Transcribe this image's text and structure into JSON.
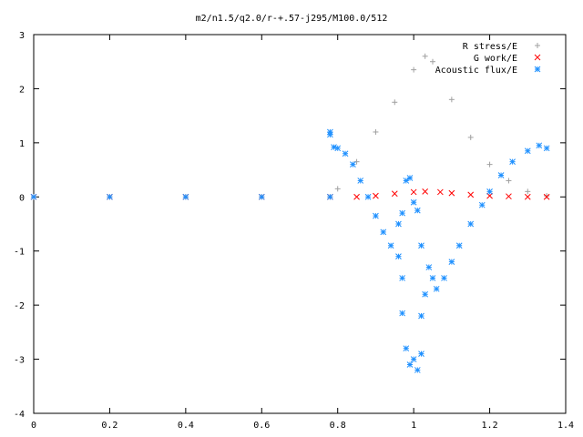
{
  "chart_data": {
    "type": "scatter",
    "title": "m2/n1.5/q2.0/r-+.57-j295/M100.0/512",
    "xlabel": "",
    "ylabel": "",
    "xlim": [
      0,
      1.4
    ],
    "ylim": [
      -4,
      3
    ],
    "x_ticks": [
      "0",
      "0.2",
      "0.4",
      "0.6",
      "0.8",
      "1",
      "1.2",
      "1.4"
    ],
    "y_ticks": [
      "3",
      "2",
      "1",
      "0",
      "-1",
      "-2",
      "-3",
      "-4"
    ],
    "grid": false,
    "legend_position": "top-right",
    "series": [
      {
        "name": "R stress/E",
        "marker": "plus",
        "color": "#a0a0a0",
        "points": [
          [
            0.0,
            0.0
          ],
          [
            0.2,
            0.0
          ],
          [
            0.4,
            0.0
          ],
          [
            0.6,
            0.0
          ],
          [
            0.78,
            0.0
          ],
          [
            0.8,
            0.15
          ],
          [
            0.85,
            0.65
          ],
          [
            0.9,
            1.2
          ],
          [
            0.95,
            1.75
          ],
          [
            1.0,
            2.35
          ],
          [
            1.03,
            2.6
          ],
          [
            1.05,
            2.5
          ],
          [
            1.1,
            1.8
          ],
          [
            1.15,
            1.1
          ],
          [
            1.2,
            0.6
          ],
          [
            1.25,
            0.3
          ],
          [
            1.3,
            0.1
          ],
          [
            1.35,
            0.02
          ]
        ]
      },
      {
        "name": "G work/E",
        "marker": "cross",
        "color": "#ff0000",
        "points": [
          [
            0.0,
            0.0
          ],
          [
            0.2,
            0.0
          ],
          [
            0.4,
            0.0
          ],
          [
            0.6,
            0.0
          ],
          [
            0.78,
            0.0
          ],
          [
            0.85,
            0.0
          ],
          [
            0.9,
            0.02
          ],
          [
            0.95,
            0.06
          ],
          [
            1.0,
            0.09
          ],
          [
            1.03,
            0.1
          ],
          [
            1.07,
            0.09
          ],
          [
            1.1,
            0.07
          ],
          [
            1.15,
            0.04
          ],
          [
            1.2,
            0.02
          ],
          [
            1.25,
            0.01
          ],
          [
            1.3,
            0.0
          ],
          [
            1.35,
            0.0
          ]
        ]
      },
      {
        "name": "Acoustic flux/E",
        "marker": "star",
        "color": "#1e90ff",
        "points": [
          [
            0.0,
            0.0
          ],
          [
            0.2,
            0.0
          ],
          [
            0.4,
            0.0
          ],
          [
            0.6,
            0.0
          ],
          [
            0.78,
            0.0
          ],
          [
            0.78,
            1.15
          ],
          [
            0.78,
            1.2
          ],
          [
            0.79,
            0.92
          ],
          [
            0.8,
            0.9
          ],
          [
            0.82,
            0.8
          ],
          [
            0.84,
            0.6
          ],
          [
            0.86,
            0.3
          ],
          [
            0.88,
            0.0
          ],
          [
            0.9,
            -0.35
          ],
          [
            0.92,
            -0.65
          ],
          [
            0.94,
            -0.9
          ],
          [
            0.96,
            -1.1
          ],
          [
            0.97,
            -1.5
          ],
          [
            0.97,
            -2.15
          ],
          [
            0.98,
            -2.8
          ],
          [
            0.99,
            -3.1
          ],
          [
            1.0,
            -3.0
          ],
          [
            1.01,
            -3.2
          ],
          [
            1.02,
            -2.9
          ],
          [
            1.02,
            -2.2
          ],
          [
            1.03,
            -1.8
          ],
          [
            1.04,
            -1.3
          ],
          [
            1.05,
            -1.5
          ],
          [
            1.06,
            -1.7
          ],
          [
            1.08,
            -1.5
          ],
          [
            1.1,
            -1.2
          ],
          [
            1.12,
            -0.9
          ],
          [
            1.15,
            -0.5
          ],
          [
            1.18,
            -0.15
          ],
          [
            1.2,
            0.1
          ],
          [
            1.23,
            0.4
          ],
          [
            1.26,
            0.65
          ],
          [
            1.3,
            0.85
          ],
          [
            1.33,
            0.95
          ],
          [
            1.35,
            0.9
          ],
          [
            0.98,
            0.3
          ],
          [
            0.99,
            0.35
          ],
          [
            1.0,
            -0.1
          ],
          [
            1.01,
            -0.25
          ],
          [
            1.02,
            -0.9
          ],
          [
            0.96,
            -0.5
          ],
          [
            0.97,
            -0.3
          ]
        ]
      }
    ]
  }
}
